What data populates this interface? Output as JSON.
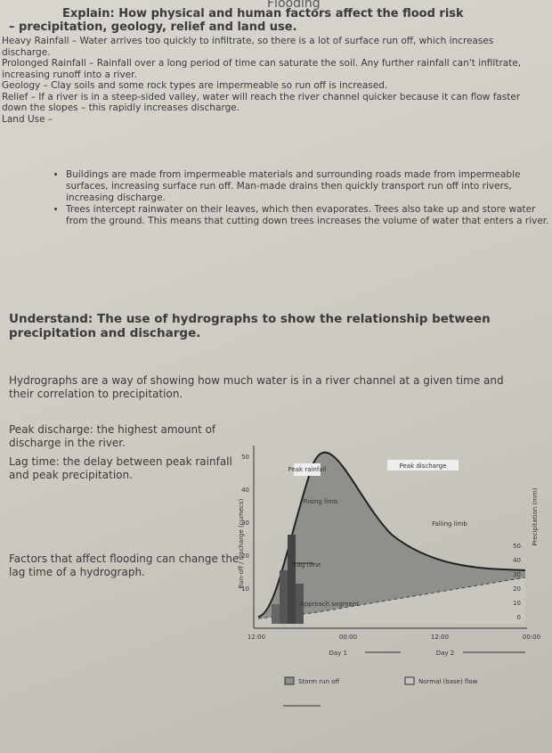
{
  "header": {
    "title": "Flooding"
  },
  "section1": {
    "heading": "Explain: How physical and human factors affect the flood risk – precipitation, geology, relief and land use.",
    "paragraphs": [
      "Heavy Rainfall – Water arrives too quickly to infiltrate, so there is a lot of surface run off, which increases discharge.",
      "Prolonged Rainfall – Rainfall over a long period of time can saturate the soil. Any further rainfall can't infiltrate, increasing runoff into a river.",
      "Geology – Clay soils and some rock types are impermeable so run off is increased.",
      "Relief – If a river is in a steep-sided valley, water will reach the river channel quicker because it can flow faster down the slopes – this rapidly increases discharge.",
      "Land Use –"
    ],
    "bullets": [
      "Buildings are made from impermeable materials and surrounding roads made from impermeable surfaces, increasing surface run off. Man-made drains then quickly transport run off into rivers, increasing discharge.",
      "Trees intercept rainwater on their leaves, which then evaporates. Trees also take up and store water from the ground. This means that cutting down trees increases the volume of water that enters a river."
    ]
  },
  "section2": {
    "heading": "Understand: The use of hydrographs to show the relationship between precipitation and discharge.",
    "intro": "Hydrographs are a way of showing how much water is in a river channel at a given time and their correlation to precipitation.",
    "definitions": [
      "Peak discharge: the highest amount of discharge in the river.",
      "Lag time: the delay between peak rainfall and peak precipitation."
    ],
    "note": "Factors that affect flooding can change the lag time of a hydrograph."
  },
  "hydrograph": {
    "y_label": "Run-off / discharge (cumecs)",
    "y2_label": "Precipitation (mm)",
    "yticks": [
      "50",
      "40",
      "30",
      "20",
      "10"
    ],
    "y2ticks": [
      "50",
      "40",
      "30",
      "20",
      "10",
      "0"
    ],
    "xticks": [
      "12:00",
      "00:00",
      "12:00",
      "00:00"
    ],
    "days": [
      "Day 1",
      "Day 2"
    ],
    "annotations": [
      "Peak rainfall",
      "Peak discharge",
      "Rising limb",
      "Falling limb",
      "Lag time",
      "Approach segment"
    ],
    "legend": [
      "Storm run off",
      "Normal (base) flow"
    ]
  }
}
